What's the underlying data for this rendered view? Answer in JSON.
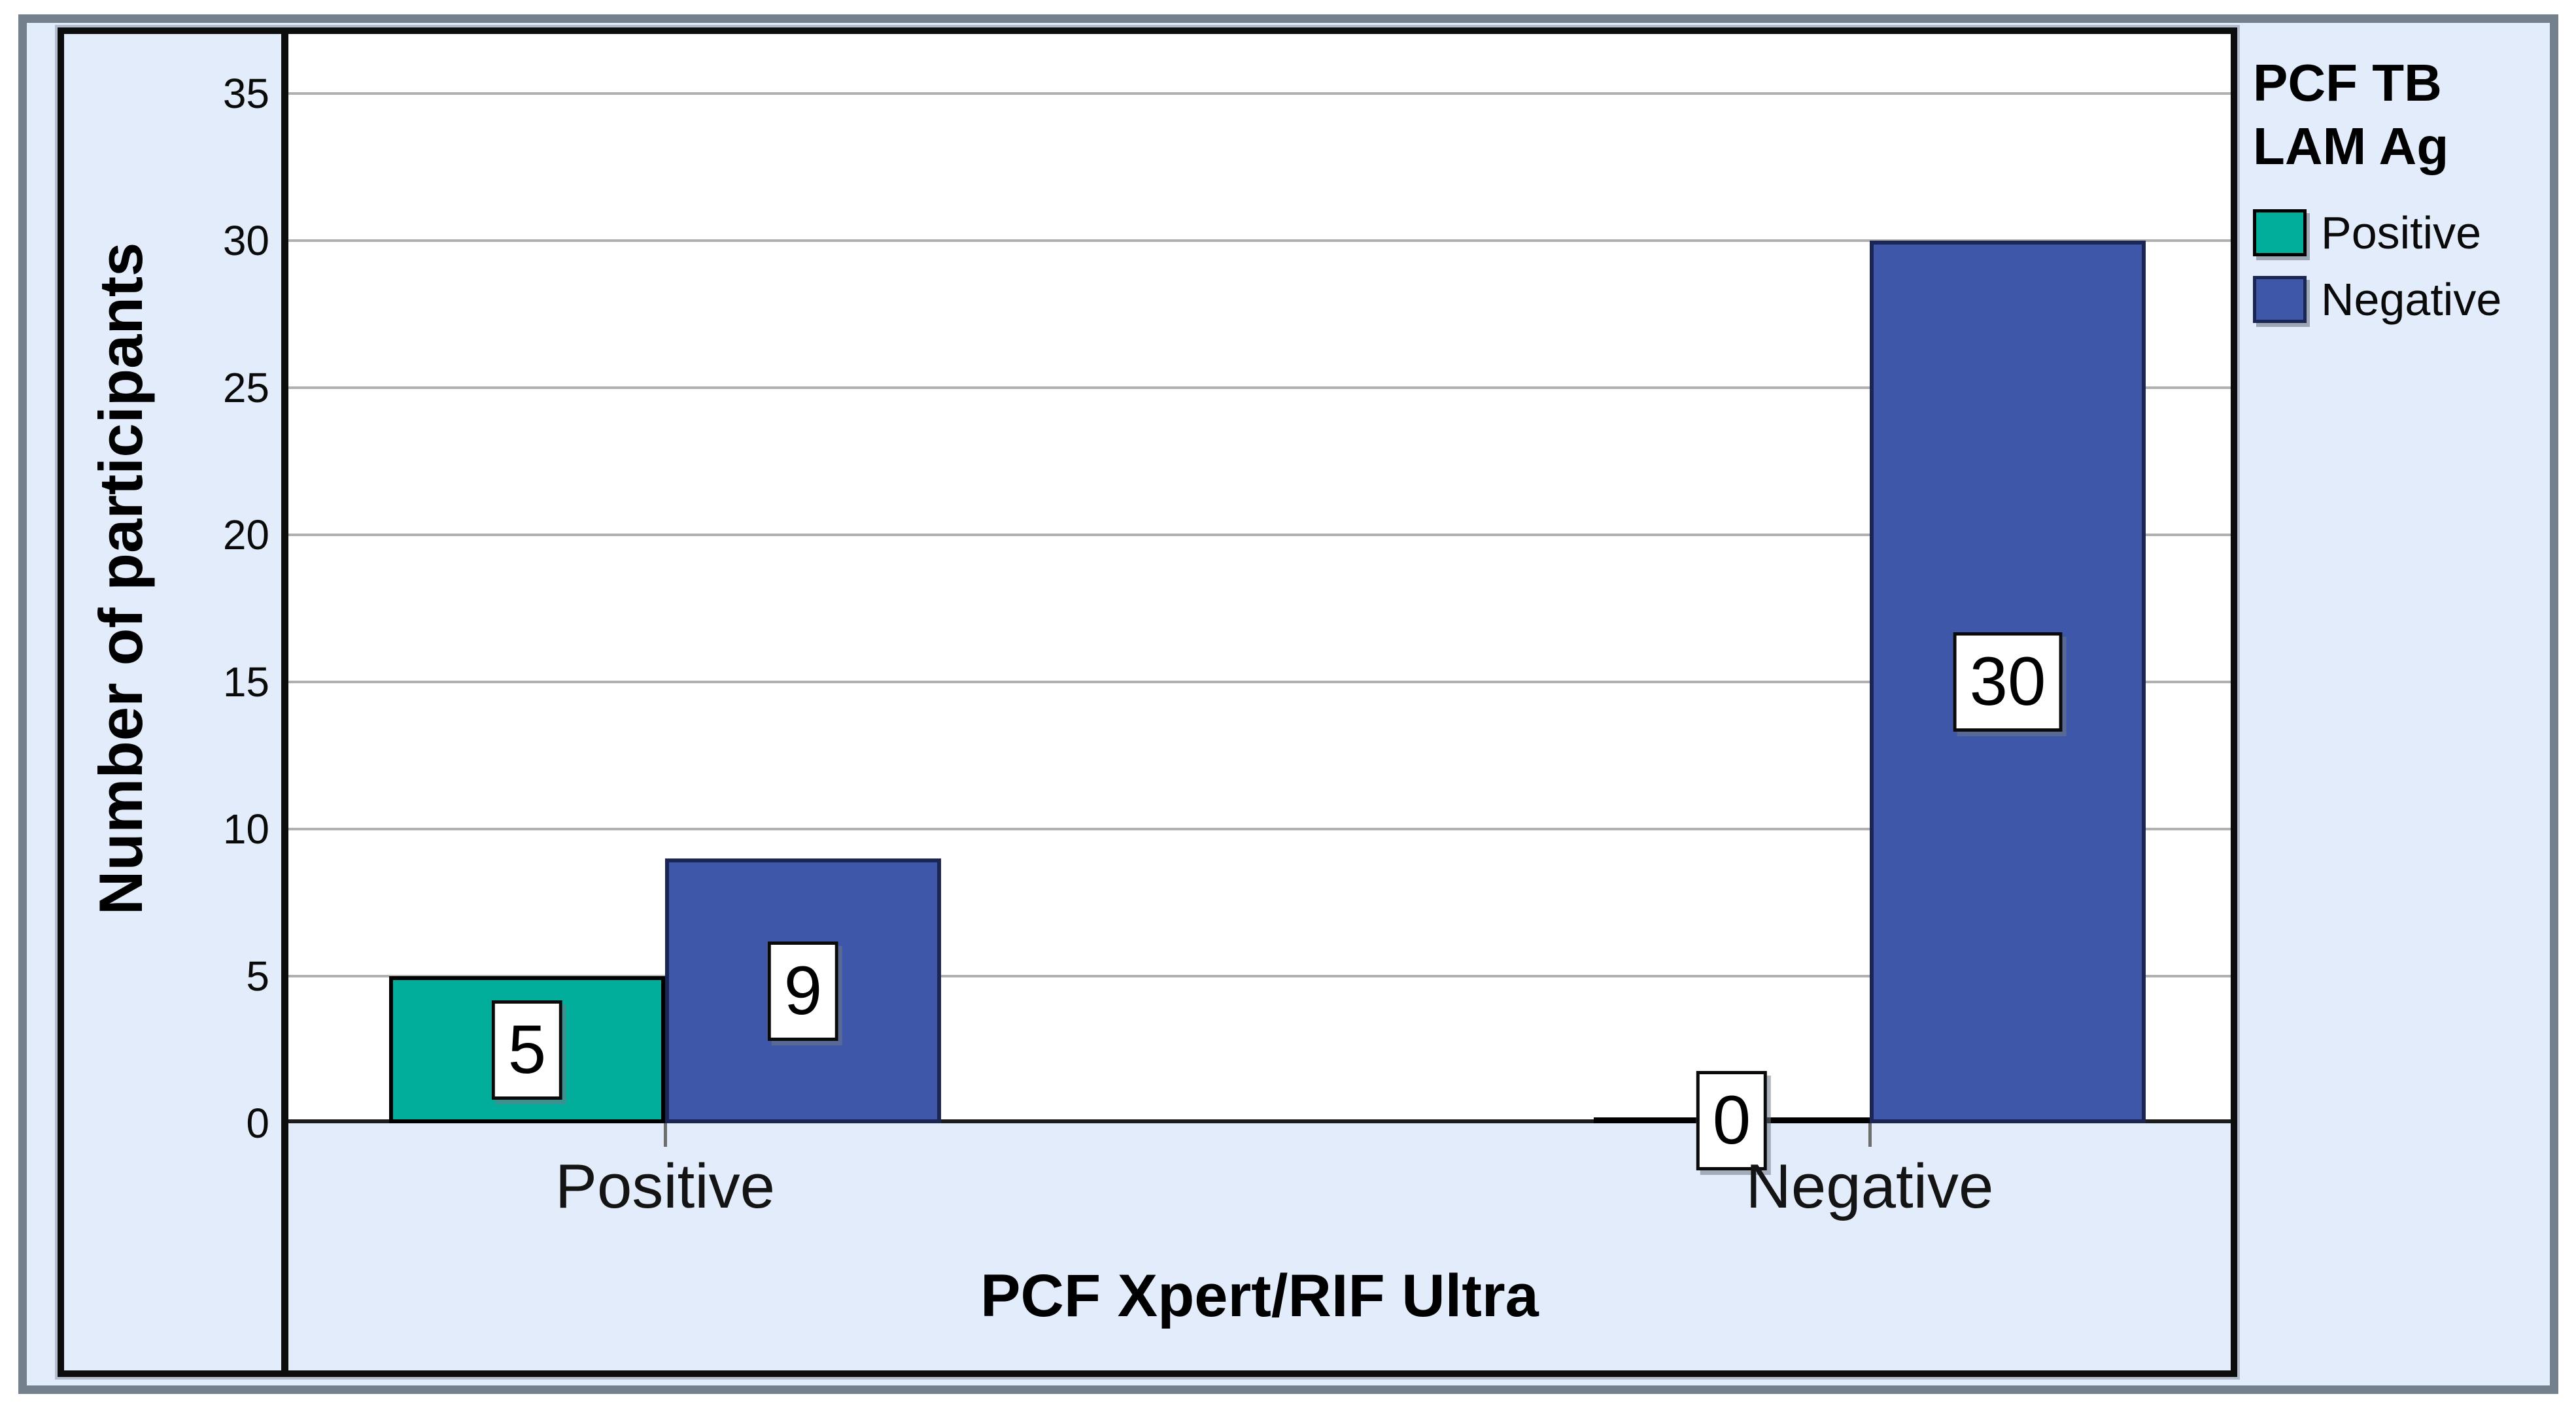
{
  "chart_data": {
    "type": "bar",
    "categories": [
      "Positive",
      "Negative"
    ],
    "series": [
      {
        "name": "Positive",
        "color": "#00AE9B",
        "border_color": "#000000",
        "values": [
          5,
          0
        ]
      },
      {
        "name": "Negative",
        "color": "#3E57A8",
        "border_color": "#1B2655",
        "values": [
          9,
          30
        ]
      }
    ],
    "xlabel": "PCF Xpert/RIF Ultra",
    "ylabel": "Number of participants",
    "yticks": [
      0,
      5,
      10,
      15,
      20,
      25,
      30,
      35
    ],
    "ylim": [
      0,
      37
    ],
    "grid": "horizontal",
    "value_labels_shown": true,
    "legend": {
      "position": "right",
      "title_lines": [
        "PCF TB",
        "LAM Ag"
      ],
      "items": [
        "Positive",
        "Negative"
      ]
    }
  },
  "colors": {
    "canvas": "#E2ECFA",
    "plot_bg": "#FFFFFF",
    "outer_border": "#74808C",
    "frame": "#0D0D0D",
    "gridline": "#B0B0B0"
  }
}
